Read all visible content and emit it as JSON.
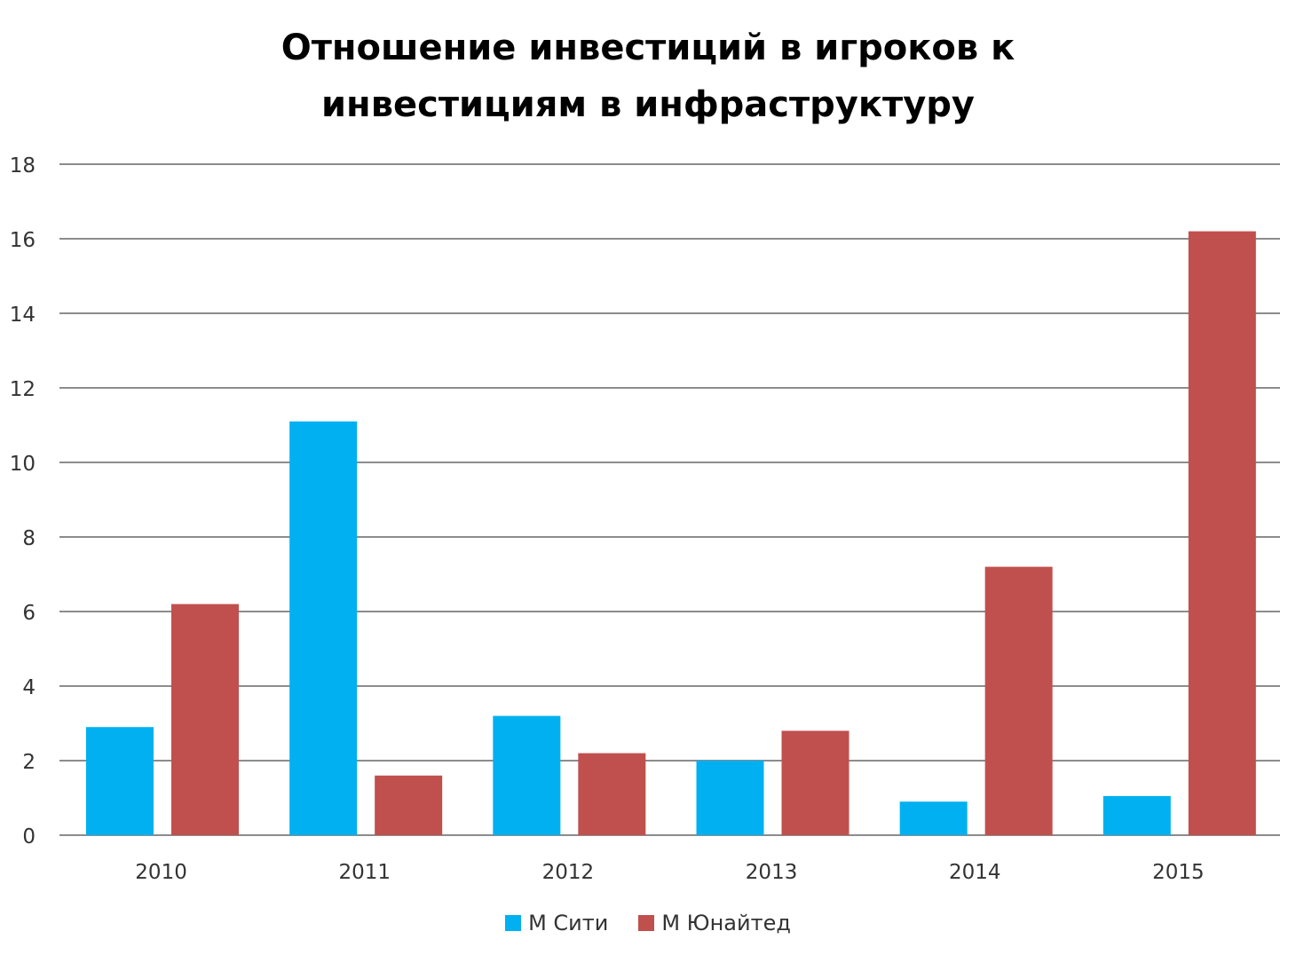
{
  "chart_data": {
    "type": "bar",
    "title_lines": [
      "Отношение инвестиций  в игроков к",
      "инвестициям  в инфраструктуру"
    ],
    "categories": [
      "2010",
      "2011",
      "2012",
      "2013",
      "2014",
      "2015"
    ],
    "series": [
      {
        "name": "М Сити",
        "color": "#00B0F0",
        "values": [
          2.9,
          11.1,
          3.2,
          2.0,
          0.9,
          1.05
        ]
      },
      {
        "name": "М Юнайтед",
        "color": "#C0504D",
        "values": [
          6.2,
          1.6,
          2.2,
          2.8,
          7.2,
          16.2
        ]
      }
    ],
    "ylim": [
      0,
      18
    ],
    "yticks": [
      "0",
      "2",
      "4",
      "6",
      "8",
      "10",
      "12",
      "14",
      "16",
      "18"
    ],
    "grid": true,
    "legend_position": "bottom"
  }
}
